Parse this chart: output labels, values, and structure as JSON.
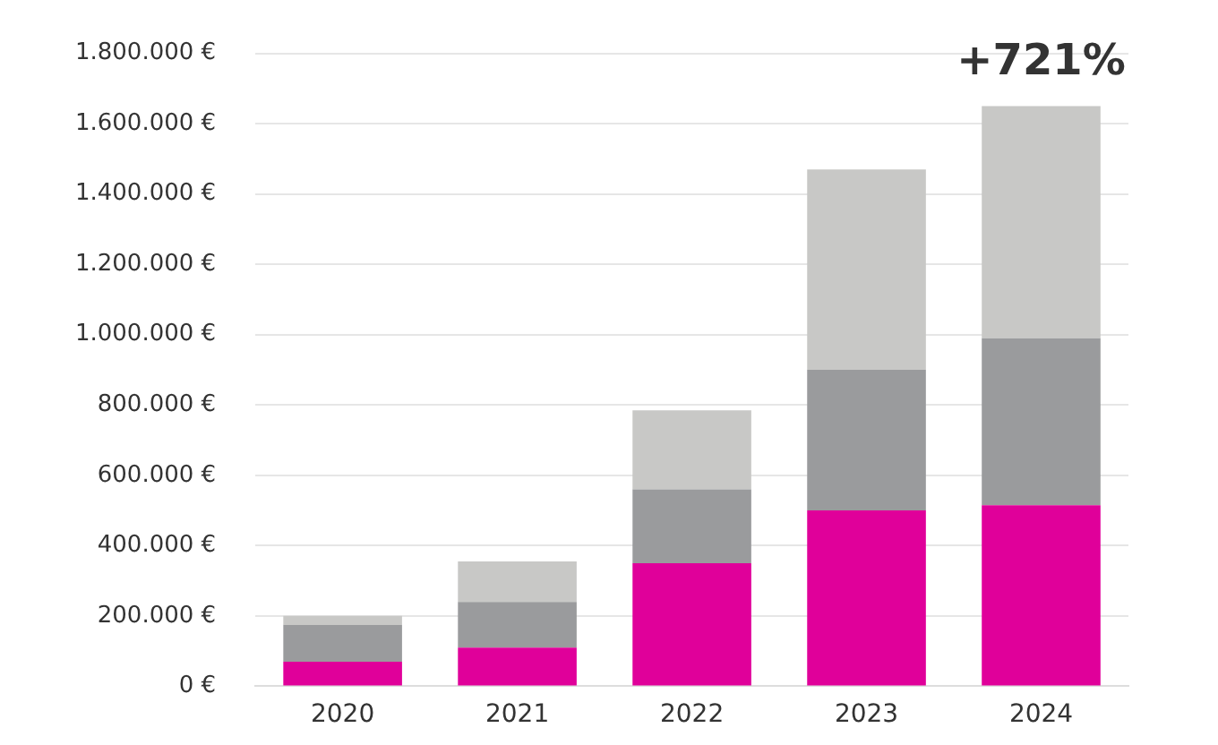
{
  "chart_data": {
    "type": "bar",
    "stacked": true,
    "categories": [
      "2020",
      "2021",
      "2022",
      "2023",
      "2024"
    ],
    "series": [
      {
        "color": "#e0009a",
        "values": [
          70000,
          110000,
          350000,
          500000,
          515000
        ]
      },
      {
        "color": "#9a9b9d",
        "values": [
          105000,
          130000,
          210000,
          400000,
          475000
        ]
      },
      {
        "color": "#c8c8c6",
        "values": [
          25000,
          115000,
          225000,
          570000,
          660000
        ]
      }
    ],
    "ylim": [
      0,
      1800000
    ],
    "yticks": [
      {
        "value": 0,
        "label": "0 €"
      },
      {
        "value": 200000,
        "label": "200.000 €"
      },
      {
        "value": 400000,
        "label": "400.000 €"
      },
      {
        "value": 600000,
        "label": "600.000 €"
      },
      {
        "value": 800000,
        "label": "800.000 €"
      },
      {
        "value": 1000000,
        "label": "1.000.000 €"
      },
      {
        "value": 1200000,
        "label": "1.200.000 €"
      },
      {
        "value": 1400000,
        "label": "1.400.000 €"
      },
      {
        "value": 1600000,
        "label": "1.600.000 €"
      },
      {
        "value": 1800000,
        "label": "1.800.000 €"
      }
    ],
    "grid": "y",
    "legend": false,
    "annotations": [
      {
        "text": "+721%",
        "x": "2024",
        "y": 1650000
      }
    ]
  }
}
